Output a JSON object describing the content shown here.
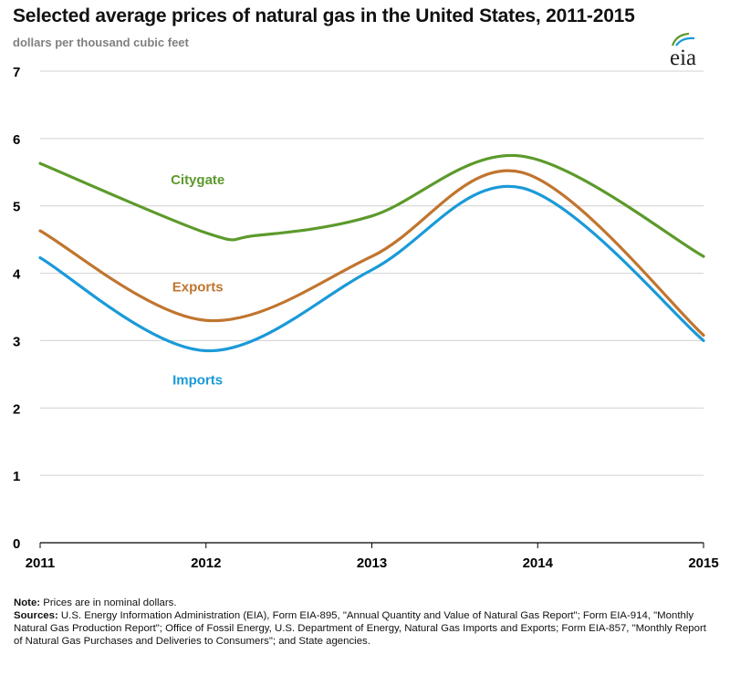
{
  "header": {
    "title": "Selected average prices of natural gas in the United States, 2011-2015",
    "unit": "dollars per thousand cubic feet",
    "logo_text": "eia"
  },
  "chart_data": {
    "type": "line",
    "x": [
      "2011",
      "2012",
      "2013",
      "2014",
      "2015"
    ],
    "ylim": [
      0,
      7
    ],
    "yticks": [
      "0",
      "1",
      "2",
      "3",
      "4",
      "5",
      "6",
      "7"
    ],
    "grid": true,
    "series": [
      {
        "name": "Citygate",
        "color": "#5c9a2b",
        "points": [
          [
            2011,
            5.63
          ],
          [
            2012,
            4.6
          ],
          [
            2012.3,
            4.56
          ],
          [
            2013,
            4.85
          ],
          [
            2013.9,
            5.74
          ],
          [
            2015,
            4.25
          ]
        ]
      },
      {
        "name": "Exports",
        "color": "#c0752f",
        "points": [
          [
            2011,
            4.63
          ],
          [
            2012,
            3.3
          ],
          [
            2013,
            4.25
          ],
          [
            2013.9,
            5.5
          ],
          [
            2015,
            3.08
          ]
        ]
      },
      {
        "name": "Imports",
        "color": "#1a9ad8",
        "points": [
          [
            2011,
            4.23
          ],
          [
            2012,
            2.85
          ],
          [
            2013,
            4.05
          ],
          [
            2013.9,
            5.27
          ],
          [
            2015,
            3.0
          ]
        ]
      }
    ]
  },
  "notes": {
    "note_label": "Note:",
    "note_text": "Prices are in nominal dollars.",
    "sources_label": "Sources:",
    "sources_text": "U.S. Energy Information Administration (EIA), Form EIA-895, \"Annual Quantity and Value of Natural Gas Report\"; Form EIA-914, \"Monthly Natural Gas Production Report\"; Office of Fossil Energy, U.S. Department of Energy, Natural Gas Imports and Exports; Form EIA-857, \"Monthly Report of Natural Gas Purchases and Deliveries to Consumers\"; and State agencies."
  }
}
